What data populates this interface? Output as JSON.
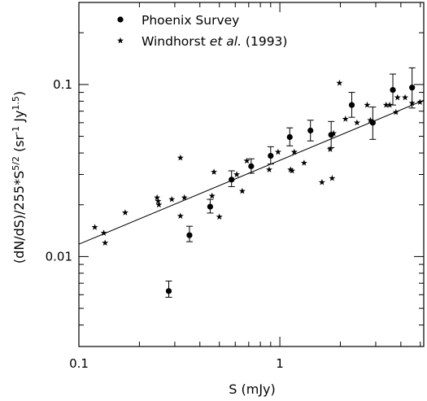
{
  "chart_data": {
    "type": "scatter",
    "xlabel": "S (mJy)",
    "ylabel": "(dN/dS)/255*S^{5/2} (sr^{-1} Jy^{1.5})",
    "xscale": "log",
    "yscale": "log",
    "xlim": [
      0.1,
      5.2
    ],
    "ylim": [
      0.003,
      0.3
    ],
    "x_ticks": [
      {
        "value": 0.1,
        "label": "0.1"
      },
      {
        "value": 1,
        "label": "1"
      }
    ],
    "y_ticks": [
      {
        "value": 0.01,
        "label": "0.01"
      },
      {
        "value": 0.1,
        "label": "0.1"
      }
    ],
    "grid": false,
    "legend_position": "top-left",
    "legend": [
      {
        "name": "Phoenix Survey",
        "marker": "filled-circle"
      },
      {
        "name": "Windhorst et al. (1993)",
        "marker": "star"
      }
    ],
    "series": [
      {
        "name": "Phoenix Survey",
        "marker": "filled-circle",
        "points": [
          {
            "x": 0.28,
            "y": 0.0063,
            "y_low": 0.0058,
            "y_high": 0.0072
          },
          {
            "x": 0.355,
            "y": 0.0133,
            "y_low": 0.0122,
            "y_high": 0.015
          },
          {
            "x": 0.45,
            "y": 0.0195,
            "y_low": 0.0179,
            "y_high": 0.0215
          },
          {
            "x": 0.575,
            "y": 0.028,
            "y_low": 0.0255,
            "y_high": 0.0315
          },
          {
            "x": 0.72,
            "y": 0.0335,
            "y_low": 0.0305,
            "y_high": 0.037
          },
          {
            "x": 0.9,
            "y": 0.0385,
            "y_low": 0.0345,
            "y_high": 0.0435
          },
          {
            "x": 1.12,
            "y": 0.0495,
            "y_low": 0.044,
            "y_high": 0.056
          },
          {
            "x": 1.42,
            "y": 0.054,
            "y_low": 0.047,
            "y_high": 0.062
          },
          {
            "x": 1.8,
            "y": 0.051,
            "y_low": 0.043,
            "y_high": 0.061
          },
          {
            "x": 2.28,
            "y": 0.076,
            "y_low": 0.0645,
            "y_high": 0.09
          },
          {
            "x": 2.9,
            "y": 0.06,
            "y_low": 0.048,
            "y_high": 0.074
          },
          {
            "x": 3.65,
            "y": 0.093,
            "y_low": 0.076,
            "y_high": 0.115
          },
          {
            "x": 4.55,
            "y": 0.096,
            "y_low": 0.073,
            "y_high": 0.125
          }
        ]
      },
      {
        "name": "Windhorst et al. (1993)",
        "marker": "star",
        "points": [
          {
            "x": 0.12,
            "y": 0.0148
          },
          {
            "x": 0.133,
            "y": 0.0137
          },
          {
            "x": 0.135,
            "y": 0.012
          },
          {
            "x": 0.17,
            "y": 0.018
          },
          {
            "x": 0.245,
            "y": 0.022
          },
          {
            "x": 0.248,
            "y": 0.021
          },
          {
            "x": 0.25,
            "y": 0.02
          },
          {
            "x": 0.29,
            "y": 0.0215
          },
          {
            "x": 0.32,
            "y": 0.0375
          },
          {
            "x": 0.32,
            "y": 0.0172
          },
          {
            "x": 0.335,
            "y": 0.022
          },
          {
            "x": 0.46,
            "y": 0.0225
          },
          {
            "x": 0.47,
            "y": 0.031
          },
          {
            "x": 0.5,
            "y": 0.017
          },
          {
            "x": 0.61,
            "y": 0.03
          },
          {
            "x": 0.65,
            "y": 0.024
          },
          {
            "x": 0.685,
            "y": 0.036
          },
          {
            "x": 0.885,
            "y": 0.032
          },
          {
            "x": 0.98,
            "y": 0.0405
          },
          {
            "x": 1.13,
            "y": 0.032
          },
          {
            "x": 1.15,
            "y": 0.0315
          },
          {
            "x": 1.18,
            "y": 0.0405
          },
          {
            "x": 1.32,
            "y": 0.035
          },
          {
            "x": 1.62,
            "y": 0.027
          },
          {
            "x": 1.78,
            "y": 0.042
          },
          {
            "x": 1.82,
            "y": 0.0285
          },
          {
            "x": 1.85,
            "y": 0.052
          },
          {
            "x": 1.98,
            "y": 0.102
          },
          {
            "x": 2.12,
            "y": 0.063
          },
          {
            "x": 2.42,
            "y": 0.06
          },
          {
            "x": 2.72,
            "y": 0.076
          },
          {
            "x": 2.82,
            "y": 0.062
          },
          {
            "x": 3.38,
            "y": 0.076
          },
          {
            "x": 3.52,
            "y": 0.076
          },
          {
            "x": 3.78,
            "y": 0.069
          },
          {
            "x": 3.85,
            "y": 0.084
          },
          {
            "x": 4.2,
            "y": 0.084
          },
          {
            "x": 4.55,
            "y": 0.078
          },
          {
            "x": 4.98,
            "y": 0.079
          }
        ]
      }
    ],
    "fit_line": {
      "from": {
        "x": 0.1,
        "y": 0.0118
      },
      "to": {
        "x": 5.2,
        "y": 0.081
      }
    }
  }
}
